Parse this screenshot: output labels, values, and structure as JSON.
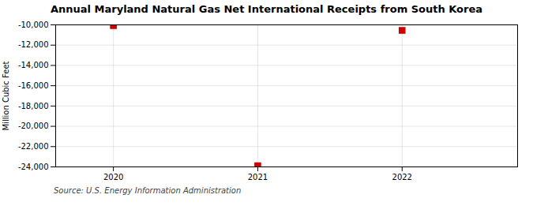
{
  "chart_data": {
    "type": "scatter",
    "title": "Annual Maryland Natural Gas Net International Receipts from South Korea",
    "ylabel": "Million Cubic Feet",
    "source": "Source: U.S. Energy Information Administration",
    "x": [
      2020,
      2021,
      2022
    ],
    "values": [
      -10074,
      -23886,
      -10549
    ],
    "color": "#cc0000",
    "marker": "square",
    "xlim": [
      2019.6,
      2022.8
    ],
    "xticks": [
      2020,
      2021,
      2022
    ],
    "ylim": [
      -24000,
      -10000
    ],
    "yticks": [
      {
        "value": -10000,
        "label": "-10,000"
      },
      {
        "value": -12000,
        "label": "-12,000"
      },
      {
        "value": -14000,
        "label": "-14,000"
      },
      {
        "value": -16000,
        "label": "-16,000"
      },
      {
        "value": -18000,
        "label": "-18,000"
      },
      {
        "value": -20000,
        "label": "-20,000"
      },
      {
        "value": -22000,
        "label": "-22,000"
      },
      {
        "value": -24000,
        "label": "-24,000"
      }
    ],
    "grid": true
  }
}
